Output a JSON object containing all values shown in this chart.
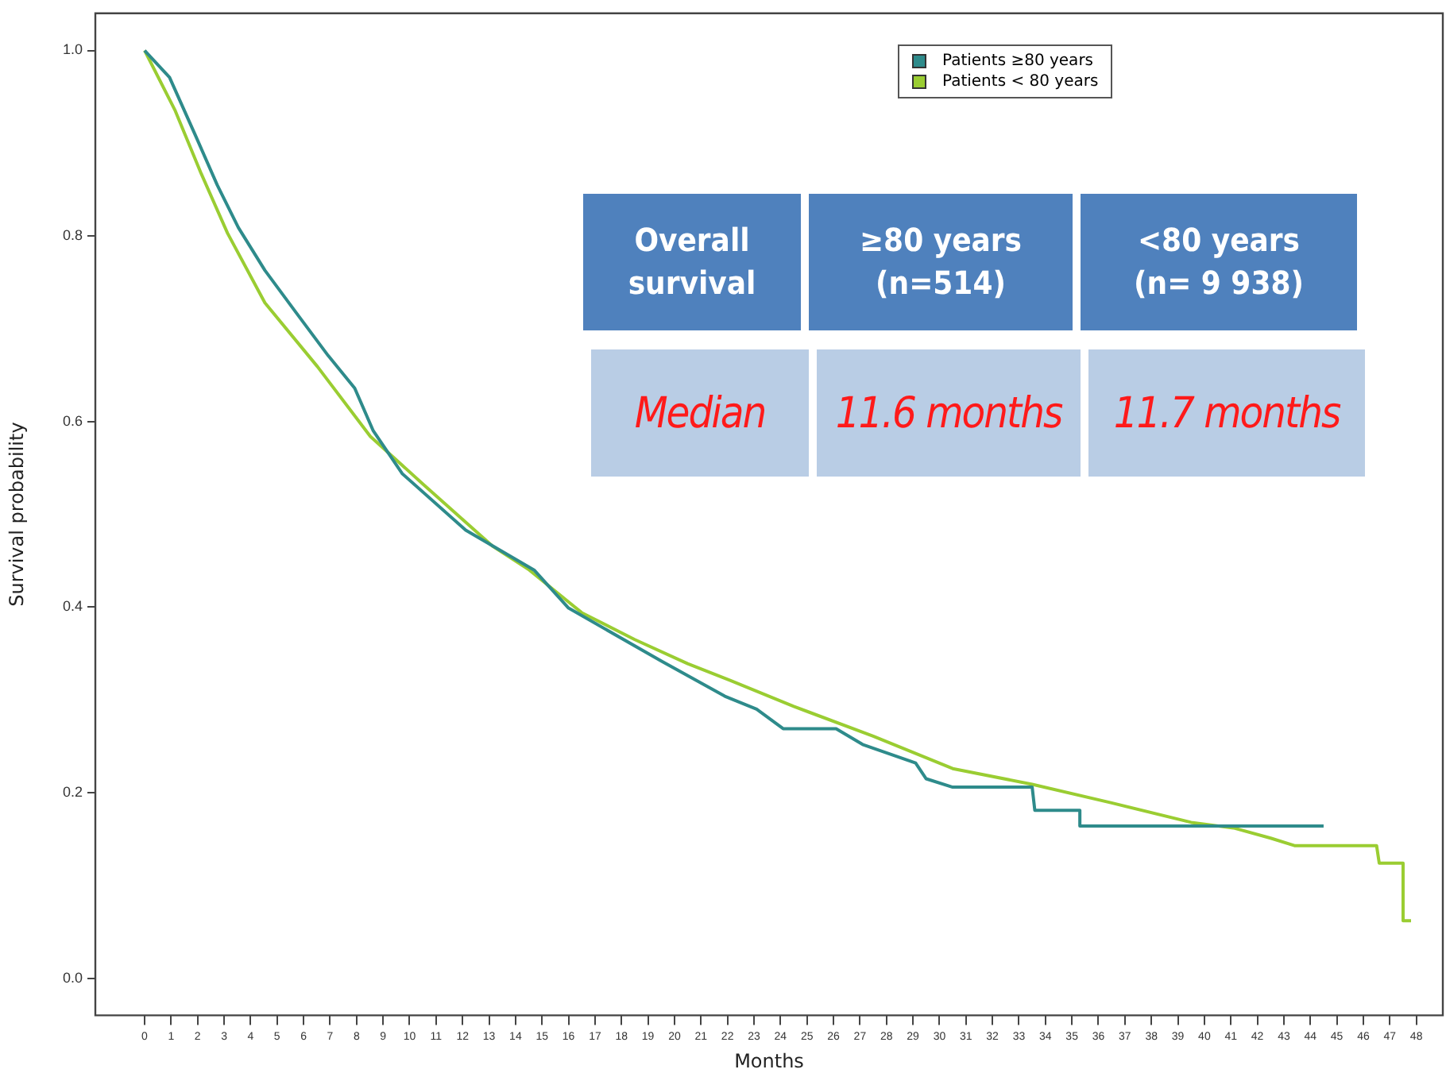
{
  "chart_data": {
    "type": "line",
    "xlabel": "Months",
    "ylabel": "Survival probability",
    "xlim": [
      -1.86,
      49
    ],
    "ylim": [
      -0.04,
      1.04
    ],
    "xticks": [
      0,
      1,
      2,
      3,
      4,
      5,
      6,
      7,
      8,
      9,
      10,
      11,
      12,
      13,
      14,
      15,
      16,
      17,
      18,
      19,
      20,
      21,
      22,
      23,
      24,
      25,
      26,
      27,
      28,
      29,
      30,
      31,
      32,
      33,
      34,
      35,
      36,
      37,
      38,
      39,
      40,
      41,
      42,
      43,
      44,
      45,
      46,
      47,
      48
    ],
    "yticks": [
      {
        "value": 0,
        "label": "0.0"
      },
      0.2,
      0.4,
      0.6,
      0.8,
      {
        "value": 1,
        "label": "1.0"
      }
    ],
    "grid": false,
    "legend": "top",
    "line_style": "solid",
    "series": [
      {
        "name": "Patients ≥80 years",
        "color": "#2e8b8b",
        "x": [
          0,
          0.94,
          1.94,
          2.74,
          3.54,
          4.54,
          5.73,
          6.93,
          7.93,
          8.63,
          9.72,
          12.12,
          14.7,
          16.0,
          19.5,
          21.9,
          23.1,
          24.1,
          26.1,
          27.1,
          29.1,
          29.5,
          30.5,
          33.5,
          33.6,
          35.3,
          35.3,
          44.5
        ],
        "values": [
          1.0,
          0.971,
          0.907,
          0.855,
          0.809,
          0.763,
          0.717,
          0.671,
          0.636,
          0.59,
          0.544,
          0.483,
          0.44,
          0.399,
          0.342,
          0.304,
          0.29,
          0.269,
          0.269,
          0.252,
          0.232,
          0.215,
          0.206,
          0.206,
          0.181,
          0.181,
          0.164,
          0.164
        ]
      },
      {
        "name": "Patients < 80 years",
        "color": "#9acd32",
        "x": [
          0,
          1.14,
          2.14,
          3.13,
          4.54,
          6.53,
          8.52,
          10.53,
          13.12,
          14.52,
          16.5,
          18.5,
          20.5,
          22.1,
          24.5,
          27.5,
          30.5,
          33.5,
          36.5,
          39.5,
          41.1,
          42.5,
          43.4,
          46.5,
          46.6,
          47.5,
          47.5,
          47.8
        ],
        "values": [
          1.0,
          0.936,
          0.867,
          0.803,
          0.728,
          0.659,
          0.584,
          0.532,
          0.466,
          0.44,
          0.394,
          0.365,
          0.339,
          0.321,
          0.293,
          0.261,
          0.226,
          0.209,
          0.189,
          0.168,
          0.162,
          0.151,
          0.143,
          0.143,
          0.124,
          0.124,
          0.062,
          0.062
        ]
      }
    ],
    "annotations": [
      "Overall survival",
      "≥80 years (n=514)",
      "<80 years (n= 9 938)",
      "Median",
      "11.6 months",
      "11.7 months"
    ]
  }
}
